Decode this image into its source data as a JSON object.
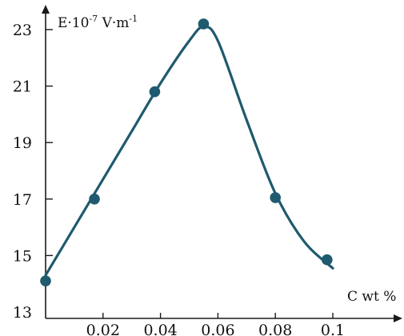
{
  "chart_data": {
    "type": "scatter",
    "title": "",
    "xlabel": "C wt %",
    "ylabel": {
      "base": "E·10",
      "exp1": "-7",
      "mid": " V·m",
      "exp2": "-1"
    },
    "xlim": [
      0,
      0.1
    ],
    "ylim": [
      13,
      23
    ],
    "x_ticks": [
      0.02,
      0.04,
      0.06,
      0.08,
      0.1
    ],
    "x_tick_labels": [
      "0.02",
      "0.04",
      "0.06",
      "0.08",
      "0.1"
    ],
    "y_ticks": [
      13,
      15,
      17,
      19,
      21,
      23
    ],
    "y_tick_labels": [
      "13",
      "15",
      "17",
      "19",
      "21",
      "23"
    ],
    "series": [
      {
        "points": [
          {
            "x": 0.0,
            "y": 14.1
          },
          {
            "x": 0.017,
            "y": 17.0
          },
          {
            "x": 0.038,
            "y": 20.8
          },
          {
            "x": 0.055,
            "y": 23.2
          },
          {
            "x": 0.08,
            "y": 17.05
          },
          {
            "x": 0.098,
            "y": 14.85
          }
        ],
        "fit_curve": [
          {
            "x": 0.0,
            "y": 14.3
          },
          {
            "x": 0.01,
            "y": 16.0
          },
          {
            "x": 0.02,
            "y": 17.7
          },
          {
            "x": 0.03,
            "y": 19.4
          },
          {
            "x": 0.04,
            "y": 21.1
          },
          {
            "x": 0.05,
            "y": 22.6
          },
          {
            "x": 0.055,
            "y": 23.1
          },
          {
            "x": 0.06,
            "y": 22.6
          },
          {
            "x": 0.07,
            "y": 19.8
          },
          {
            "x": 0.08,
            "y": 17.2
          },
          {
            "x": 0.09,
            "y": 15.5
          },
          {
            "x": 0.1,
            "y": 14.55
          }
        ],
        "color": "#1f5a6e"
      }
    ],
    "grid": false,
    "legend": "none"
  }
}
